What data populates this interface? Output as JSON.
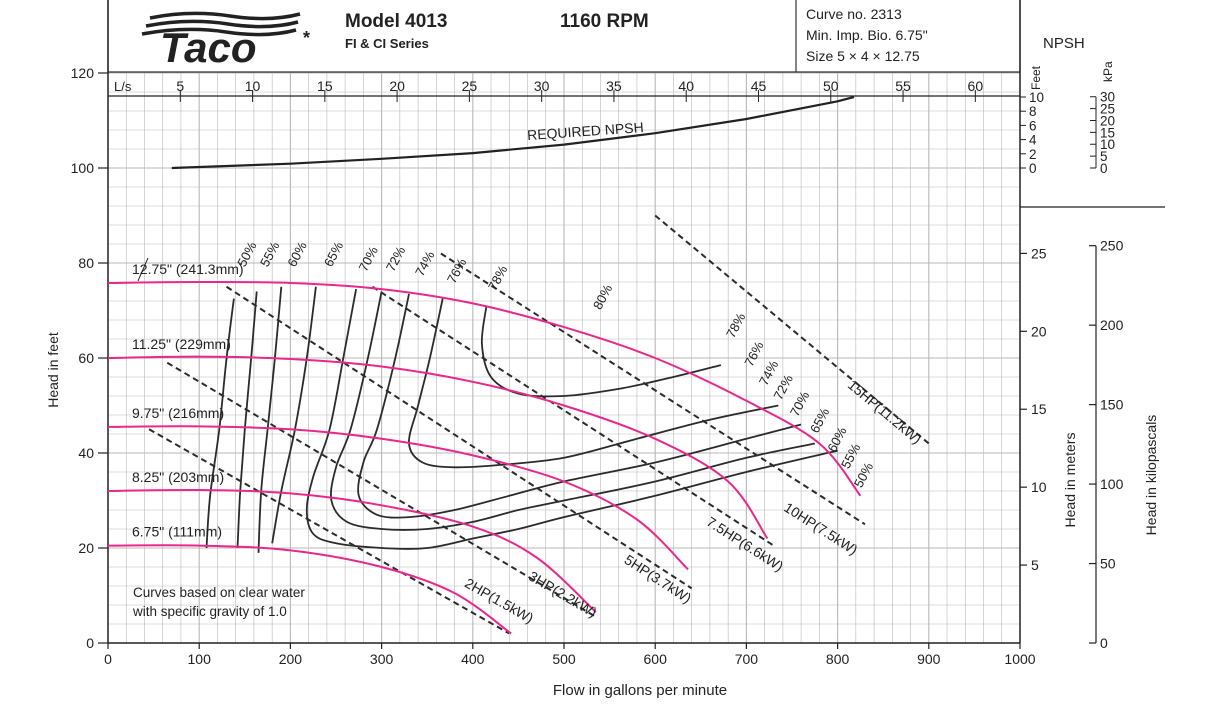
{
  "header": {
    "brand": "Taco",
    "brand_mark": "*",
    "model": "Model 4013",
    "series": "FI & CI Series",
    "speed": "1160 RPM",
    "curve_no": "Curve no. 2313",
    "min_impeller": "Min. Imp. Bio. 6.75\"",
    "size": "Size 5 × 4 × 12.75",
    "npsh_title": "NPSH",
    "npsh_feet_unit": "Feet",
    "npsh_kpa_unit": "kPa"
  },
  "axes": {
    "x_label": "Flow in gallons per minute",
    "y_label": "Head in feet",
    "x_ticks": [
      "0",
      "100",
      "200",
      "300",
      "400",
      "500",
      "600",
      "700",
      "800",
      "900",
      "1000"
    ],
    "y_ticks": [
      "0",
      "20",
      "40",
      "60",
      "80",
      "100",
      "120"
    ],
    "ls_label": "L/s",
    "ls_ticks": [
      "5",
      "10",
      "15",
      "20",
      "25",
      "30",
      "35",
      "40",
      "45",
      "50",
      "55",
      "60"
    ],
    "npsh_feet_ticks": [
      "10",
      "8",
      "6",
      "4",
      "2",
      "0"
    ],
    "npsh_kpa_ticks": [
      "30",
      "25",
      "20",
      "15",
      "10",
      "5",
      "0"
    ],
    "meters_label": "Head in meters",
    "meters_ticks": [
      "5",
      "10",
      "15",
      "20",
      "25"
    ],
    "kpa_label": "Head in kilopascals",
    "kpa_ticks": [
      "0",
      "50",
      "100",
      "150",
      "200",
      "250"
    ]
  },
  "note": {
    "line1": "Curves based on clear water",
    "line2": "with specific gravity of 1.0"
  },
  "required_npsh_label": "REQUIRED NPSH",
  "chart_data": {
    "type": "line",
    "title": "Model 4013  1160 RPM",
    "xlabel": "Flow in gallons per minute",
    "ylabel": "Head in feet",
    "xlim": [
      0,
      1000
    ],
    "ylim": [
      0,
      120
    ],
    "grid": true,
    "colors": {
      "impeller": "#e8288c",
      "efficiency": "#2b2b2b",
      "horsepower": "#2b2b2b",
      "grid": "#b9b9b9"
    },
    "impeller_curves": [
      {
        "name": "12.75\" (241.3mm)",
        "points": [
          [
            0,
            75.8
          ],
          [
            100,
            76
          ],
          [
            200,
            75.8
          ],
          [
            300,
            74.5
          ],
          [
            400,
            71.5
          ],
          [
            500,
            66.5
          ],
          [
            600,
            60
          ],
          [
            700,
            51
          ],
          [
            780,
            42
          ],
          [
            825,
            31
          ]
        ]
      },
      {
        "name": "11.25\" (229mm)",
        "points": [
          [
            0,
            60
          ],
          [
            100,
            60.3
          ],
          [
            200,
            59.8
          ],
          [
            300,
            58.2
          ],
          [
            400,
            55
          ],
          [
            500,
            50
          ],
          [
            600,
            43
          ],
          [
            680,
            34
          ],
          [
            723,
            22
          ]
        ]
      },
      {
        "name": "9.75\" (216mm)",
        "points": [
          [
            0,
            45.5
          ],
          [
            100,
            45.6
          ],
          [
            200,
            45
          ],
          [
            300,
            43
          ],
          [
            400,
            39.5
          ],
          [
            500,
            34
          ],
          [
            580,
            26
          ],
          [
            636,
            15.5
          ]
        ]
      },
      {
        "name": "8.25\" (203mm)",
        "points": [
          [
            0,
            32
          ],
          [
            100,
            32.2
          ],
          [
            200,
            31.5
          ],
          [
            300,
            29
          ],
          [
            400,
            24.5
          ],
          [
            470,
            18
          ],
          [
            535,
            6.5
          ]
        ]
      },
      {
        "name": "6.75\" (111mm)",
        "points": [
          [
            0,
            20.5
          ],
          [
            100,
            20.5
          ],
          [
            200,
            19.5
          ],
          [
            300,
            16
          ],
          [
            380,
            10.5
          ],
          [
            442,
            2
          ]
        ]
      }
    ],
    "efficiency_contours": [
      {
        "name": "50%",
        "points": [
          [
            138,
            72.5
          ],
          [
            130,
            60
          ],
          [
            122,
            45
          ],
          [
            112,
            31
          ],
          [
            108,
            20
          ]
        ],
        "label_at": [
          150,
          79
        ]
      },
      {
        "name": "55%",
        "points": [
          [
            163,
            74
          ],
          [
            157,
            60
          ],
          [
            150,
            45
          ],
          [
            145,
            32
          ],
          [
            142,
            20
          ]
        ],
        "label_at": [
          175,
          79
        ]
      },
      {
        "name": "60%",
        "points": [
          [
            190,
            75
          ],
          [
            183,
            60
          ],
          [
            175,
            45
          ],
          [
            168,
            32
          ],
          [
            165,
            19
          ]
        ],
        "label_at": [
          205,
          79
        ]
      },
      {
        "name": "65%",
        "points": [
          [
            228,
            75
          ],
          [
            218,
            60
          ],
          [
            205,
            45
          ],
          [
            190,
            32
          ],
          [
            180,
            21
          ]
        ],
        "label_at": [
          245,
          79
        ]
      },
      {
        "name": "70%",
        "points": [
          [
            272,
            74.5
          ],
          [
            258,
            60
          ],
          [
            243,
            45
          ],
          [
            225,
            35
          ],
          [
            218,
            28
          ],
          [
            225,
            23
          ],
          [
            250,
            21
          ],
          [
            300,
            20
          ],
          [
            350,
            20
          ],
          [
            400,
            22
          ],
          [
            450,
            24
          ],
          [
            500,
            26.5
          ],
          [
            600,
            31
          ],
          [
            700,
            36
          ],
          [
            800,
            40.5
          ]
        ],
        "label_at": [
          283,
          78
        ]
      },
      {
        "name": "72%",
        "points": [
          [
            300,
            74
          ],
          [
            285,
            60
          ],
          [
            266,
            45
          ],
          [
            250,
            37
          ],
          [
            245,
            30
          ],
          [
            262,
            25.5
          ],
          [
            300,
            24
          ],
          [
            350,
            24
          ],
          [
            400,
            25.5
          ],
          [
            450,
            28
          ],
          [
            500,
            30
          ],
          [
            600,
            34
          ],
          [
            700,
            39
          ],
          [
            775,
            42
          ]
        ],
        "label_at": [
          313,
          78
        ]
      },
      {
        "name": "74%",
        "points": [
          [
            330,
            73.5
          ],
          [
            315,
            60
          ],
          [
            295,
            45
          ],
          [
            280,
            38
          ],
          [
            275,
            31
          ],
          [
            295,
            27
          ],
          [
            330,
            26.5
          ],
          [
            380,
            28
          ],
          [
            440,
            31
          ],
          [
            500,
            34
          ],
          [
            600,
            38
          ],
          [
            700,
            43
          ],
          [
            760,
            46
          ]
        ],
        "label_at": [
          345,
          77
        ]
      },
      {
        "name": "76%",
        "points": [
          [
            367,
            72.5
          ],
          [
            353,
            60
          ],
          [
            340,
            50
          ],
          [
            330,
            42
          ],
          [
            345,
            38
          ],
          [
            380,
            37
          ],
          [
            430,
            37.5
          ],
          [
            500,
            39
          ],
          [
            580,
            43
          ],
          [
            660,
            47
          ],
          [
            735,
            50
          ]
        ],
        "label_at": [
          380,
          75.5
        ]
      },
      {
        "name": "78%",
        "points": [
          [
            415,
            71
          ],
          [
            410,
            63
          ],
          [
            420,
            56
          ],
          [
            450,
            52.5
          ],
          [
            500,
            52
          ],
          [
            560,
            53.5
          ],
          [
            620,
            56
          ],
          [
            672,
            58.5
          ]
        ],
        "label_at": [
          425,
          74
        ]
      },
      {
        "name": "78%",
        "points": [],
        "label_at": [
          686,
          64
        ]
      },
      {
        "name": "80%",
        "points": [],
        "label_at": [
          540,
          70
        ]
      },
      {
        "name": "76%",
        "points": [],
        "label_at": [
          706,
          58
        ]
      },
      {
        "name": "74%",
        "points": [],
        "label_at": [
          722,
          54
        ]
      },
      {
        "name": "72%",
        "points": [],
        "label_at": [
          738,
          51
        ]
      },
      {
        "name": "70%",
        "points": [],
        "label_at": [
          756,
          47.5
        ]
      },
      {
        "name": "65%",
        "points": [],
        "label_at": [
          778,
          44
        ]
      },
      {
        "name": "60%",
        "points": [],
        "label_at": [
          797,
          40
        ]
      },
      {
        "name": "55%",
        "points": [],
        "label_at": [
          812,
          36.5
        ]
      },
      {
        "name": "50%",
        "points": [],
        "label_at": [
          826,
          32.5
        ]
      }
    ],
    "horsepower_lines": [
      {
        "name": "2HP(1.5kW)",
        "points": [
          [
            45,
            45
          ],
          [
            440,
            2
          ]
        ],
        "label_at": [
          390,
          12
        ]
      },
      {
        "name": "3HP(2.2kW)",
        "points": [
          [
            65,
            59
          ],
          [
            535,
            5.5
          ]
        ],
        "label_at": [
          460,
          13.5
        ]
      },
      {
        "name": "5HP(3.7kW)",
        "points": [
          [
            130,
            75
          ],
          [
            640,
            11.5
          ]
        ],
        "label_at": [
          565,
          17
        ]
      },
      {
        "name": "7.5HP(6.6kW)",
        "points": [
          [
            290,
            75
          ],
          [
            730,
            20.5
          ]
        ],
        "label_at": [
          655,
          25
        ]
      },
      {
        "name": "10HP(7.5kW)",
        "points": [
          [
            365,
            82
          ],
          [
            830,
            25
          ]
        ],
        "label_at": [
          740,
          28
        ]
      },
      {
        "name": "15HP(11.2kW)",
        "points": [
          [
            600,
            90
          ],
          [
            900,
            42
          ]
        ],
        "label_at": [
          810,
          54
        ]
      }
    ],
    "required_npsh": {
      "unit": "feet",
      "points": [
        [
          70,
          0
        ],
        [
          200,
          0.6
        ],
        [
          300,
          1.3
        ],
        [
          400,
          2.1
        ],
        [
          500,
          3.3
        ],
        [
          600,
          4.9
        ],
        [
          700,
          6.9
        ],
        [
          800,
          9.4
        ],
        [
          818,
          10
        ]
      ]
    }
  }
}
